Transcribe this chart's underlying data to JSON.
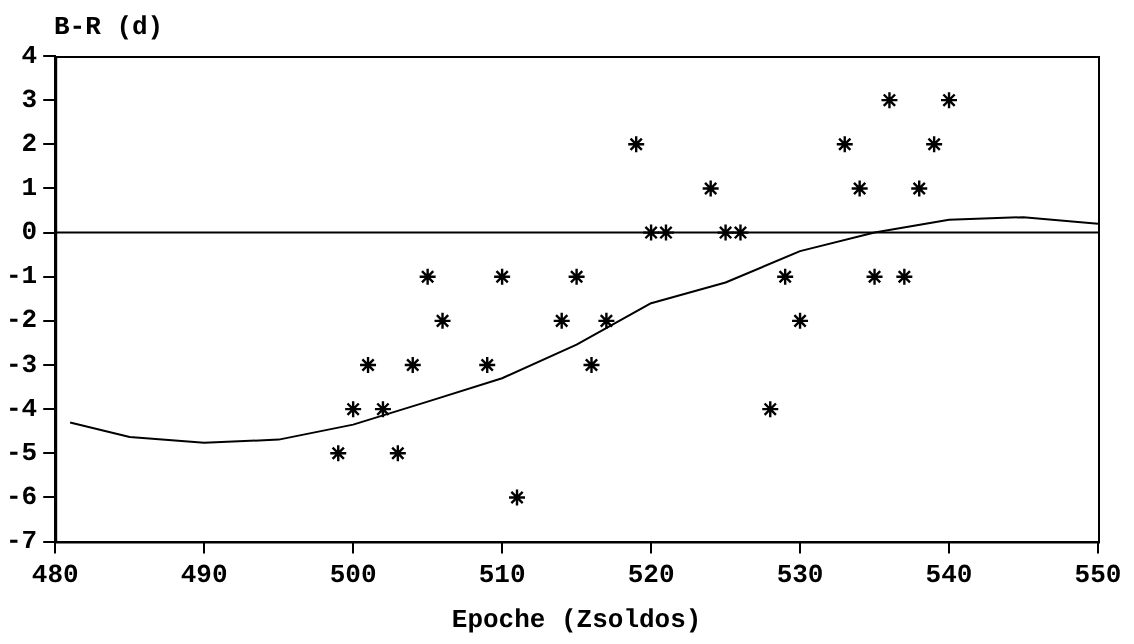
{
  "chart_data": {
    "type": "scatter",
    "xlabel": "Epoche (Zsoldos)",
    "ylabel": "B-R (d)",
    "series": [
      {
        "color": "#000000",
        "marker": "cross",
        "x": [
          499,
          500,
          501,
          502,
          503,
          504,
          505,
          506,
          509,
          510,
          511,
          514,
          515,
          516,
          517,
          519,
          520,
          521,
          524,
          525,
          526,
          528,
          529,
          530,
          533,
          534,
          535,
          536,
          537,
          538,
          539,
          540
        ],
        "values": [
          -5,
          -4,
          -3,
          -4,
          -5,
          -3,
          -1,
          -2,
          -3,
          -1,
          -6,
          -2,
          -1,
          -3,
          -2,
          2,
          0,
          0,
          1,
          0,
          0,
          -4,
          -1,
          -2,
          2,
          1,
          -1,
          3,
          -1,
          1,
          2,
          3
        ]
      },
      {
        "type": "line",
        "color": "#000000",
        "marker": "none",
        "line_style": "solid",
        "x": [
          481,
          485,
          490,
          495,
          500,
          505,
          510,
          515,
          520,
          525,
          530,
          535,
          540,
          545,
          550
        ],
        "values": [
          -4.3,
          -4.63,
          -4.76,
          -4.69,
          -4.35,
          -3.83,
          -3.3,
          -2.54,
          -1.6,
          -1.13,
          -0.42,
          0,
          0.29,
          0.35,
          0.2
        ]
      }
    ],
    "xlim": [
      480,
      550
    ],
    "xticks": [
      480,
      490,
      500,
      510,
      520,
      530,
      540,
      550
    ],
    "ylim": [
      -7,
      4
    ],
    "yticks": [
      -7,
      -6,
      -5,
      -4,
      -3,
      -2,
      -1,
      0,
      1,
      2,
      3,
      4
    ],
    "ref_lines": [
      {
        "axis": "y",
        "value": 0,
        "color": "#000000"
      }
    ],
    "grid": false,
    "legend": false
  }
}
